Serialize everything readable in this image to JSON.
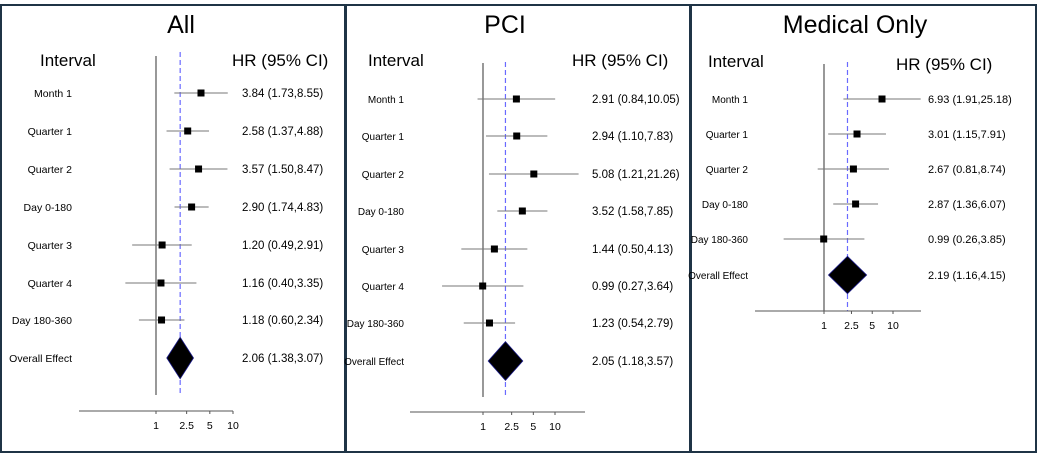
{
  "chart_data": [
    {
      "type": "forest",
      "title": "All",
      "col_left": "Interval",
      "col_right": "HR (95% CI)",
      "scale": "log",
      "ticks": [
        "1",
        "2.5",
        "5",
        "10"
      ],
      "tick_values": [
        1,
        2.5,
        5,
        10
      ],
      "reference_line": 1,
      "overall_line": 2.06,
      "rows": [
        {
          "label": "Month 1",
          "hr": 3.84,
          "lo": 1.73,
          "hi": 8.55,
          "text": "3.84 (1.73,8.55)"
        },
        {
          "label": "Quarter 1",
          "hr": 2.58,
          "lo": 1.37,
          "hi": 4.88,
          "text": "2.58 (1.37,4.88)"
        },
        {
          "label": "Quarter 2",
          "hr": 3.57,
          "lo": 1.5,
          "hi": 8.47,
          "text": "3.57 (1.50,8.47)"
        },
        {
          "label": "Day 0-180",
          "hr": 2.9,
          "lo": 1.74,
          "hi": 4.83,
          "text": "2.90 (1.74,4.83)"
        },
        {
          "label": "Quarter 3",
          "hr": 1.2,
          "lo": 0.49,
          "hi": 2.91,
          "text": "1.20 (0.49,2.91)"
        },
        {
          "label": "Quarter 4",
          "hr": 1.16,
          "lo": 0.4,
          "hi": 3.35,
          "text": "1.16 (0.40,3.35)"
        },
        {
          "label": "Day 180-360",
          "hr": 1.18,
          "lo": 0.6,
          "hi": 2.34,
          "text": "1.18 (0.60,2.34)"
        },
        {
          "label": "Overall Effect",
          "hr": 2.06,
          "lo": 1.38,
          "hi": 3.07,
          "text": "2.06 (1.38,3.07)",
          "overall": true
        }
      ]
    },
    {
      "type": "forest",
      "title": "PCI",
      "col_left": "Interval",
      "col_right": "HR (95% CI)",
      "scale": "log",
      "ticks": [
        "1",
        "2.5",
        "5",
        "10"
      ],
      "tick_values": [
        1,
        2.5,
        5,
        10
      ],
      "reference_line": 1,
      "overall_line": 2.05,
      "rows": [
        {
          "label": "Month 1",
          "hr": 2.91,
          "lo": 0.84,
          "hi": 10.05,
          "text": "2.91 (0.84,10.05)"
        },
        {
          "label": "Quarter 1",
          "hr": 2.94,
          "lo": 1.1,
          "hi": 7.83,
          "text": "2.94 (1.10,7.83)"
        },
        {
          "label": "Quarter 2",
          "hr": 5.08,
          "lo": 1.21,
          "hi": 21.26,
          "text": "5.08 (1.21,21.26)"
        },
        {
          "label": "Day 0-180",
          "hr": 3.52,
          "lo": 1.58,
          "hi": 7.85,
          "text": "3.52 (1.58,7.85)"
        },
        {
          "label": "Quarter 3",
          "hr": 1.44,
          "lo": 0.5,
          "hi": 4.13,
          "text": "1.44 (0.50,4.13)"
        },
        {
          "label": "Quarter 4",
          "hr": 0.99,
          "lo": 0.27,
          "hi": 3.64,
          "text": "0.99 (0.27,3.64)"
        },
        {
          "label": "Day 180-360",
          "hr": 1.23,
          "lo": 0.54,
          "hi": 2.79,
          "text": "1.23 (0.54,2.79)"
        },
        {
          "label": "Overall Effect",
          "hr": 2.05,
          "lo": 1.18,
          "hi": 3.57,
          "text": "2.05 (1.18,3.57)",
          "overall": true
        }
      ]
    },
    {
      "type": "forest",
      "title": "Medical Only",
      "col_left": "Interval",
      "col_right": "HR (95% CI)",
      "scale": "log",
      "ticks": [
        "1",
        "2.5",
        "5",
        "10"
      ],
      "tick_values": [
        1,
        2.5,
        5,
        10
      ],
      "reference_line": 1,
      "overall_line": 2.19,
      "rows": [
        {
          "label": "Month 1",
          "hr": 6.93,
          "lo": 1.91,
          "hi": 25.18,
          "text": "6.93 (1.91,25.18)"
        },
        {
          "label": "Quarter 1",
          "hr": 3.01,
          "lo": 1.15,
          "hi": 7.91,
          "text": "3.01 (1.15,7.91)"
        },
        {
          "label": "Quarter 2",
          "hr": 2.67,
          "lo": 0.81,
          "hi": 8.74,
          "text": "2.67 (0.81,8.74)"
        },
        {
          "label": "Day 0-180",
          "hr": 2.87,
          "lo": 1.36,
          "hi": 6.07,
          "text": "2.87 (1.36,6.07)"
        },
        {
          "label": "Day 180-360",
          "hr": 0.99,
          "lo": 0.26,
          "hi": 3.85,
          "text": "0.99 (0.26,3.85)"
        },
        {
          "label": "Overall Effect",
          "hr": 2.19,
          "lo": 1.16,
          "hi": 4.15,
          "text": "2.19 (1.16,4.15)",
          "overall": true
        }
      ]
    }
  ],
  "colors": {
    "border": "#1f3446",
    "ci_line": "#777777",
    "marker": "#000000",
    "overall_line": "#6a6aff",
    "ref_line": "#555555"
  }
}
